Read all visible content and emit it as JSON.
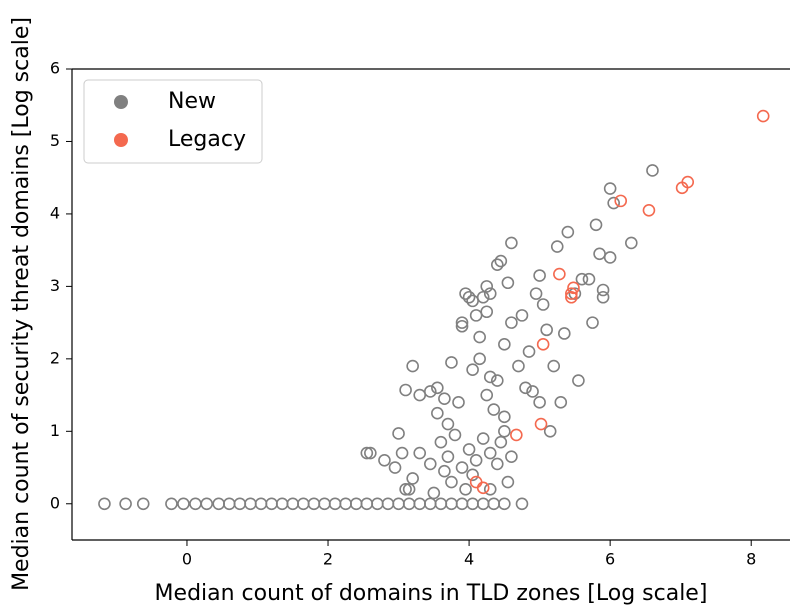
{
  "chart_data": {
    "type": "scatter",
    "xlabel": "Median count of domains in TLD zones [Log scale]",
    "ylabel": "Median count of security threat domains [Log scale]",
    "xlim": [
      -1.63,
      8.55
    ],
    "ylim": [
      -0.5,
      6
    ],
    "xticks": [
      0,
      2,
      4,
      6,
      8
    ],
    "yticks": [
      0,
      1,
      2,
      3,
      4,
      5,
      6
    ],
    "legend": "upper left",
    "series": [
      {
        "name": "New",
        "color": "#808080",
        "x": [
          -1.17,
          -0.87,
          -0.62,
          -0.22,
          -0.05,
          0.12,
          0.28,
          0.45,
          0.6,
          0.75,
          0.9,
          1.05,
          1.2,
          1.35,
          1.5,
          1.65,
          1.8,
          1.95,
          2.1,
          2.25,
          2.4,
          2.55,
          2.7,
          2.85,
          3.0,
          3.15,
          3.3,
          3.45,
          3.6,
          3.75,
          3.9,
          4.05,
          4.2,
          4.35,
          4.5,
          4.75,
          2.8,
          2.95,
          3.05,
          3.2,
          3.3,
          3.45,
          3.6,
          3.7,
          3.8,
          3.9,
          4.0,
          4.05,
          4.1,
          4.2,
          4.3,
          4.4,
          4.5,
          4.6,
          3.95,
          3.5,
          3.1,
          4.3,
          4.55,
          2.55,
          2.6,
          3.0,
          3.15,
          3.75,
          4.45,
          3.65,
          3.1,
          3.2,
          3.3,
          3.45,
          3.55,
          3.65,
          3.75,
          3.7,
          3.85,
          3.9,
          3.9,
          3.95,
          4.0,
          4.05,
          4.2,
          4.3,
          4.25,
          4.4,
          4.45,
          4.55,
          4.6,
          4.15,
          4.3,
          4.4,
          4.5,
          4.6,
          4.7,
          4.8,
          4.9,
          5.0,
          5.05,
          5.0,
          5.1,
          5.15,
          5.25,
          5.3,
          5.35,
          5.4,
          5.5,
          5.55,
          5.6,
          5.7,
          5.75,
          5.8,
          5.85,
          5.9,
          5.9,
          6.0,
          6.05,
          6.0,
          6.3,
          6.6,
          4.1,
          4.15,
          4.35,
          4.5,
          4.25,
          3.55,
          4.75,
          4.85,
          4.95,
          5.2,
          4.05,
          4.25
        ],
        "values": [
          0,
          0,
          0,
          0,
          0,
          0,
          0,
          0,
          0,
          0,
          0,
          0,
          0,
          0,
          0,
          0,
          0,
          0,
          0,
          0,
          0,
          0,
          0,
          0,
          0,
          0,
          0,
          0,
          0,
          0,
          0,
          0,
          0,
          0,
          0,
          0,
          0.6,
          0.5,
          0.7,
          0.35,
          0.7,
          0.55,
          0.85,
          0.65,
          0.95,
          0.5,
          0.75,
          0.4,
          0.6,
          0.9,
          0.7,
          0.55,
          1.0,
          0.65,
          0.2,
          0.15,
          0.2,
          0.2,
          0.3,
          0.7,
          0.7,
          0.97,
          0.2,
          0.3,
          0.85,
          0.45,
          1.57,
          1.9,
          1.5,
          1.55,
          1.6,
          1.45,
          1.95,
          1.1,
          1.4,
          2.45,
          2.5,
          2.9,
          2.85,
          2.8,
          2.85,
          2.9,
          3.0,
          3.3,
          3.35,
          3.05,
          3.6,
          2.0,
          1.75,
          1.7,
          2.2,
          2.5,
          1.9,
          1.6,
          1.55,
          1.4,
          2.75,
          3.15,
          2.4,
          1.0,
          3.55,
          1.4,
          2.35,
          3.75,
          2.9,
          1.7,
          3.1,
          3.1,
          2.5,
          3.85,
          3.45,
          2.95,
          2.85,
          4.35,
          4.15,
          3.4,
          3.6,
          4.6,
          2.6,
          2.3,
          1.3,
          1.2,
          1.5,
          1.25,
          2.6,
          2.1,
          2.9,
          1.9,
          1.85,
          2.65
        ]
      },
      {
        "name": "Legacy",
        "color": "#f4694f",
        "x": [
          8.17,
          7.1,
          7.02,
          6.55,
          6.15,
          5.28,
          5.48,
          5.45,
          5.45,
          5.05,
          5.02,
          4.67,
          4.1,
          4.2
        ],
        "values": [
          5.35,
          4.44,
          4.36,
          4.05,
          4.18,
          3.17,
          2.98,
          2.9,
          2.85,
          2.2,
          1.1,
          0.95,
          0.3,
          0.22
        ]
      }
    ]
  }
}
